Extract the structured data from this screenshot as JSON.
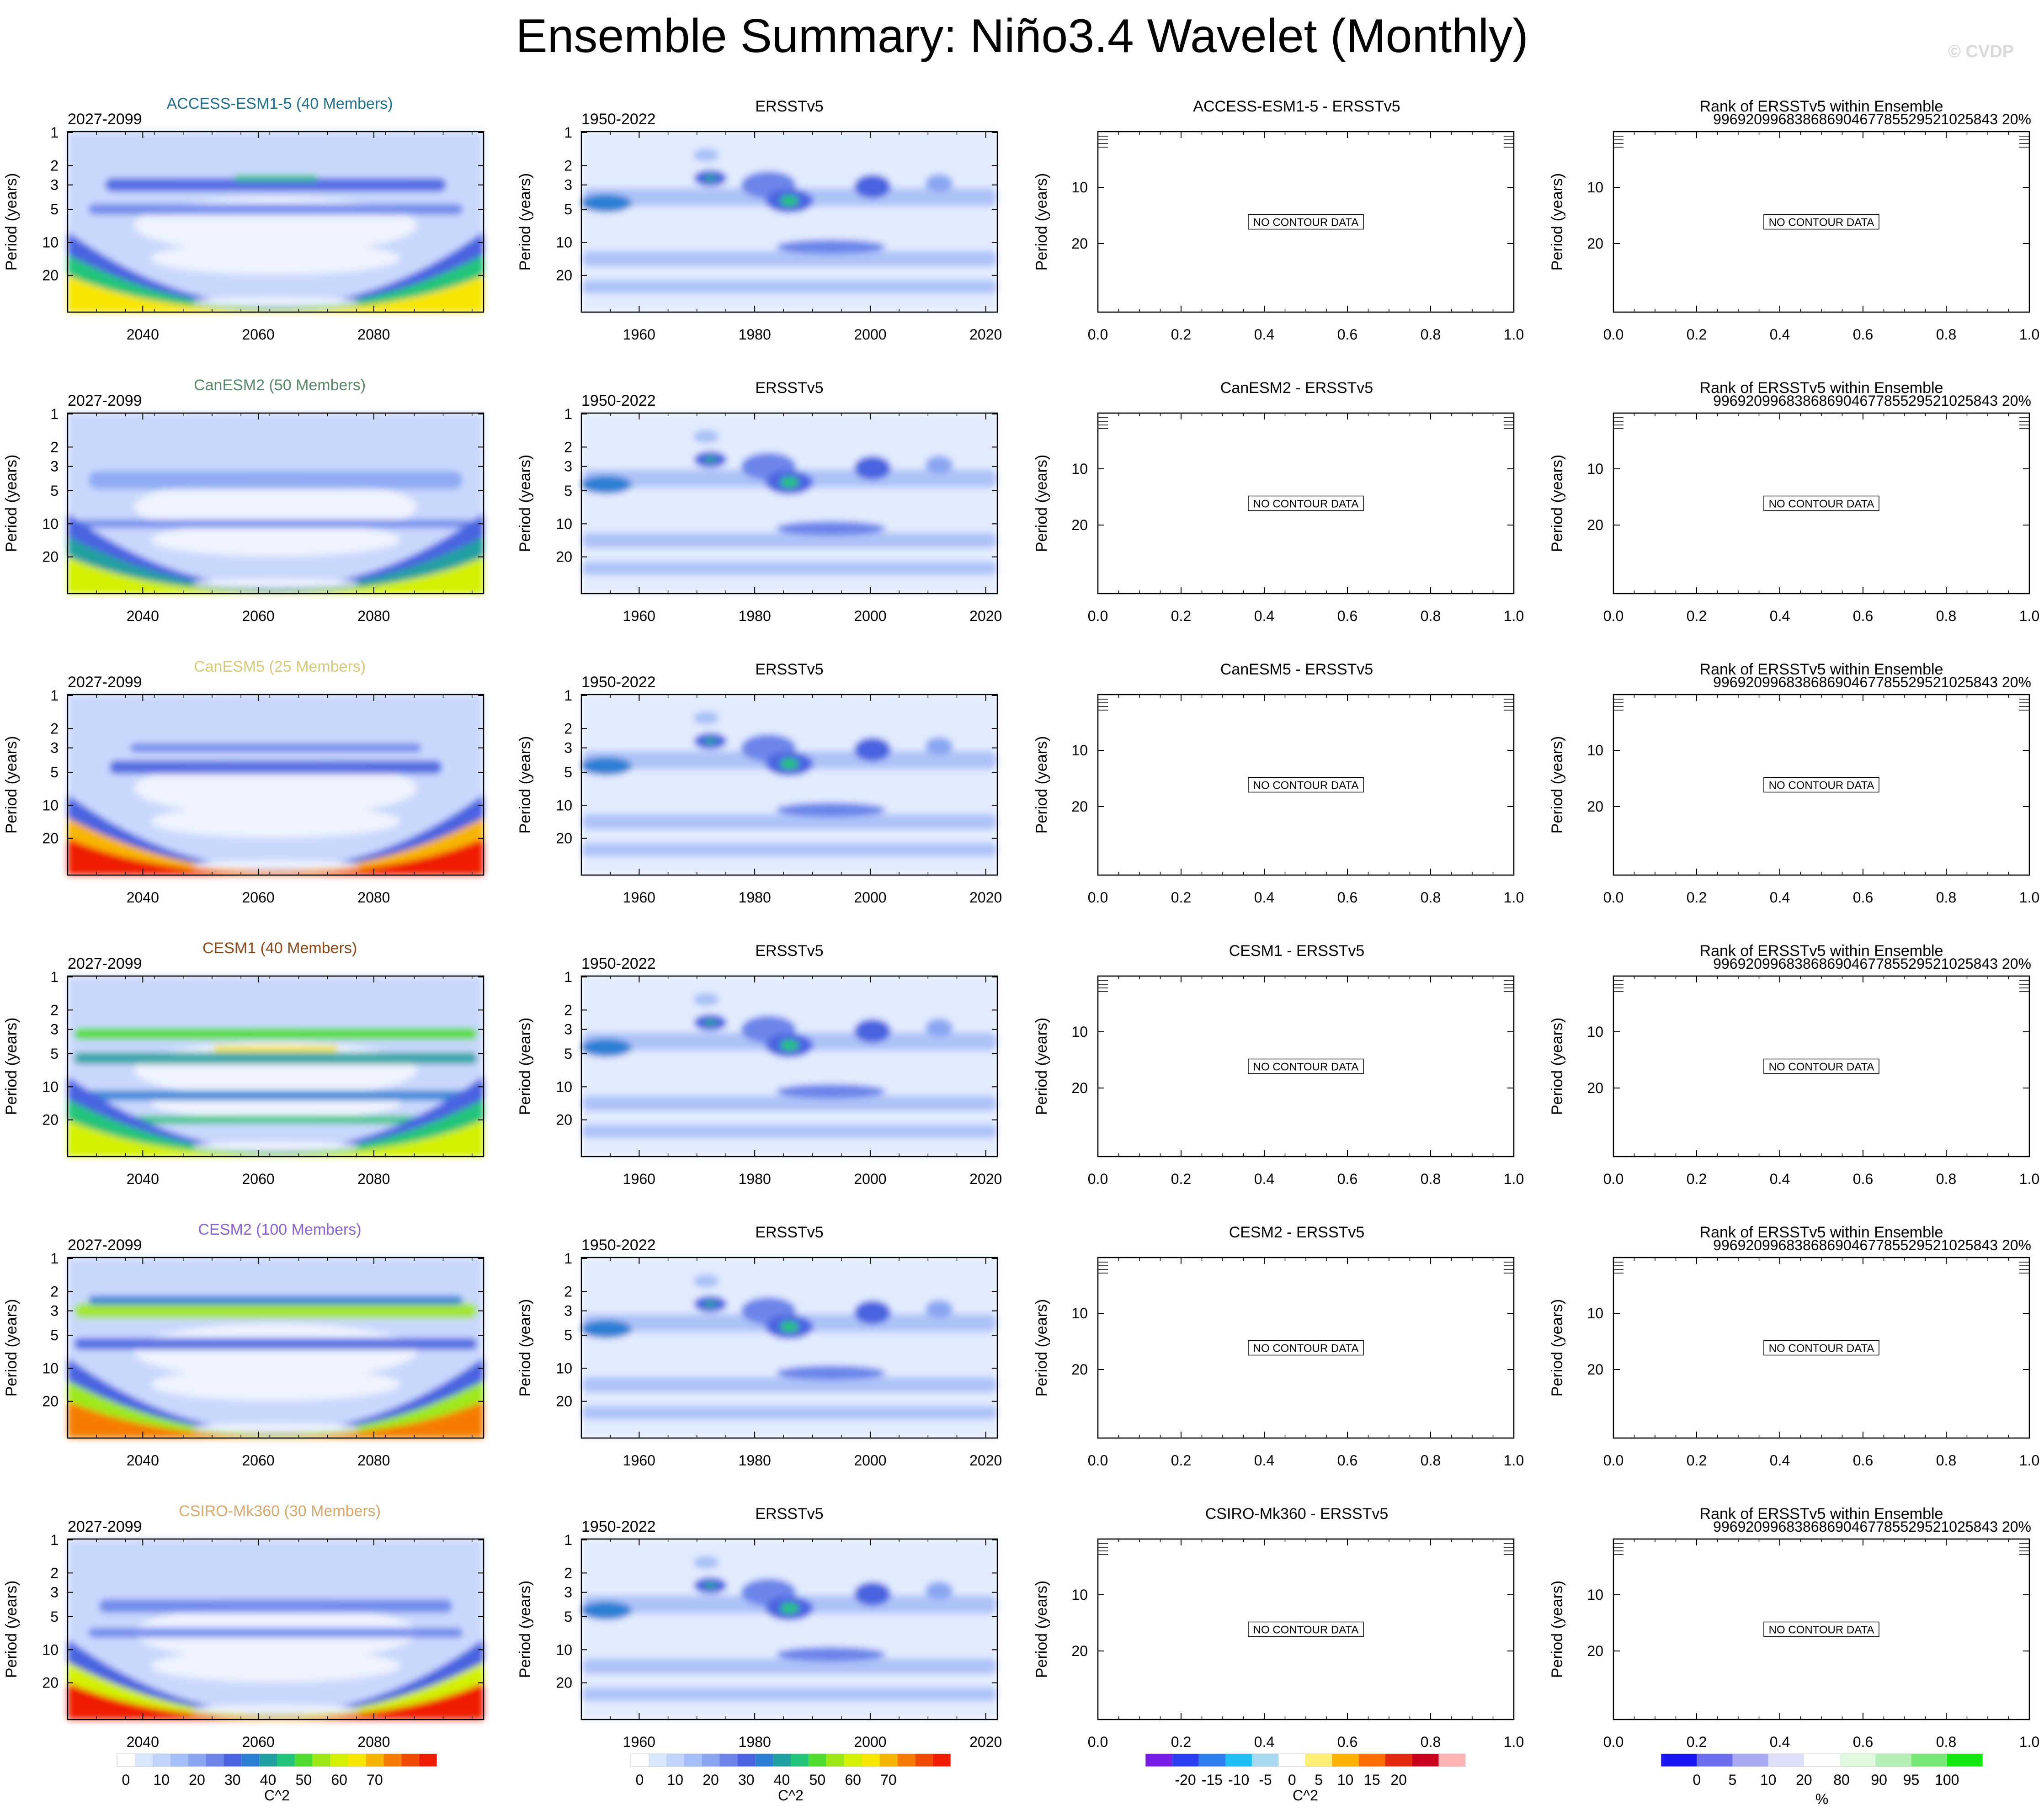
{
  "title": "Ensemble Summary: Niño3.4 Wavelet (Monthly)",
  "watermark": "© CVDP",
  "chart_data": {
    "type": "heatmap",
    "ylabel": "Period (years)",
    "nodata_label": "NO CONTOUR DATA",
    "columns": [
      {
        "key": "ensemble",
        "yticks": [
          1,
          2,
          3,
          5,
          10,
          20
        ],
        "xticks": [
          "2040",
          "2060",
          "2080"
        ],
        "xrange": [
          2027,
          2099
        ]
      },
      {
        "key": "observed",
        "yticks": [
          1,
          2,
          3,
          5,
          10,
          20
        ],
        "xticks": [
          "1960",
          "1980",
          "2000",
          "2020"
        ],
        "xrange": [
          1950,
          2022
        ]
      },
      {
        "key": "difference",
        "yticks": [
          10,
          20
        ],
        "xticks": [
          "0.0",
          "0.2",
          "0.4",
          "0.6",
          "0.8",
          "1.0"
        ],
        "xrange": [
          0,
          1
        ]
      },
      {
        "key": "rank",
        "yticks": [
          10,
          20
        ],
        "xticks": [
          "0.0",
          "0.2",
          "0.4",
          "0.6",
          "0.8",
          "1.0"
        ],
        "xrange": [
          0,
          1
        ]
      }
    ],
    "rows": [
      {
        "model": "ACCESS-ESM1-5",
        "members": 40,
        "ens_title": "ACCESS-ESM1-5 (40 Members)",
        "color": "#1f6e8c",
        "ens_period": "2027-2099",
        "obs_period": "1950-2022",
        "obs_title": "ERSSTv5",
        "diff_title": "ACCESS-ESM1-5 - ERSSTv5",
        "rank_title": "Rank of ERSSTv5 within Ensemble",
        "rank_text": "99692099683868690467785529521025843 20%",
        "profile": "access"
      },
      {
        "model": "CanESM2",
        "members": 50,
        "ens_title": "CanESM2 (50 Members)",
        "color": "#5a8a6a",
        "ens_period": "2027-2099",
        "obs_period": "1950-2022",
        "obs_title": "ERSSTv5",
        "diff_title": "CanESM2 - ERSSTv5",
        "rank_title": "Rank of ERSSTv5 within Ensemble",
        "rank_text": "99692099683868690467785529521025843 20%",
        "profile": "canesm2"
      },
      {
        "model": "CanESM5",
        "members": 25,
        "ens_title": "CanESM5 (25 Members)",
        "color": "#d8c87a",
        "ens_period": "2027-2099",
        "obs_period": "1950-2022",
        "obs_title": "ERSSTv5",
        "diff_title": "CanESM5 - ERSSTv5",
        "rank_title": "Rank of ERSSTv5 within Ensemble",
        "rank_text": "99692099683868690467785529521025843 20%",
        "profile": "canesm5"
      },
      {
        "model": "CESM1",
        "members": 40,
        "ens_title": "CESM1 (40 Members)",
        "color": "#8b4a1c",
        "ens_period": "2027-2099",
        "obs_period": "1950-2022",
        "obs_title": "ERSSTv5",
        "diff_title": "CESM1 - ERSSTv5",
        "rank_title": "Rank of ERSSTv5 within Ensemble",
        "rank_text": "99692099683868690467785529521025843 20%",
        "profile": "cesm1"
      },
      {
        "model": "CESM2",
        "members": 100,
        "ens_title": "CESM2 (100 Members)",
        "color": "#8a63d2",
        "ens_period": "2027-2099",
        "obs_period": "1950-2022",
        "obs_title": "ERSSTv5",
        "diff_title": "CESM2 - ERSSTv5",
        "rank_title": "Rank of ERSSTv5 within Ensemble",
        "rank_text": "99692099683868690467785529521025843 20%",
        "profile": "cesm2"
      },
      {
        "model": "CSIRO-Mk360",
        "members": 30,
        "ens_title": "CSIRO-Mk360 (30 Members)",
        "color": "#d9a86c",
        "ens_period": "2027-2099",
        "obs_period": "1950-2022",
        "obs_title": "ERSSTv5",
        "diff_title": "CSIRO-Mk360 - ERSSTv5",
        "rank_title": "Rank of ERSSTv5 within Ensemble",
        "rank_text": "99692099683868690467785529521025843 20%",
        "profile": "csiro"
      }
    ],
    "colorbars": [
      {
        "key": "power",
        "unit": "C^2",
        "labels": [
          "0",
          "10",
          "20",
          "30",
          "40",
          "50",
          "60",
          "70"
        ],
        "colors": [
          "#ffffff",
          "#d9e6ff",
          "#bfd3fb",
          "#a6bff6",
          "#8aa6f2",
          "#6c85ea",
          "#4a63e0",
          "#2a7fd4",
          "#20a0a0",
          "#22c47a",
          "#4fdc2e",
          "#9ee81a",
          "#d2f000",
          "#f6e600",
          "#f7b500",
          "#f57c00",
          "#f24a00",
          "#ee1c00"
        ]
      },
      {
        "key": "difference",
        "unit": "C^2",
        "labels": [
          "-20",
          "-15",
          "-10",
          "-5",
          "0",
          "5",
          "10",
          "15",
          "20"
        ],
        "colors": [
          "#7a1de8",
          "#2b3ef2",
          "#2f80ee",
          "#1fc0f5",
          "#a8d8f2",
          "#ffffff",
          "#fff176",
          "#ffb300",
          "#ff6d00",
          "#e52a12",
          "#c8001e",
          "#ffb3b3"
        ]
      },
      {
        "key": "rank",
        "unit": "%",
        "labels": [
          "0",
          "5",
          "10",
          "20",
          "80",
          "90",
          "95",
          "100"
        ],
        "colors": [
          "#1a14f2",
          "#6c6cf0",
          "#a7a9f3",
          "#dedff8",
          "#ffffff",
          "#dff8df",
          "#b4f0b4",
          "#76e876",
          "#10e810"
        ]
      }
    ]
  }
}
